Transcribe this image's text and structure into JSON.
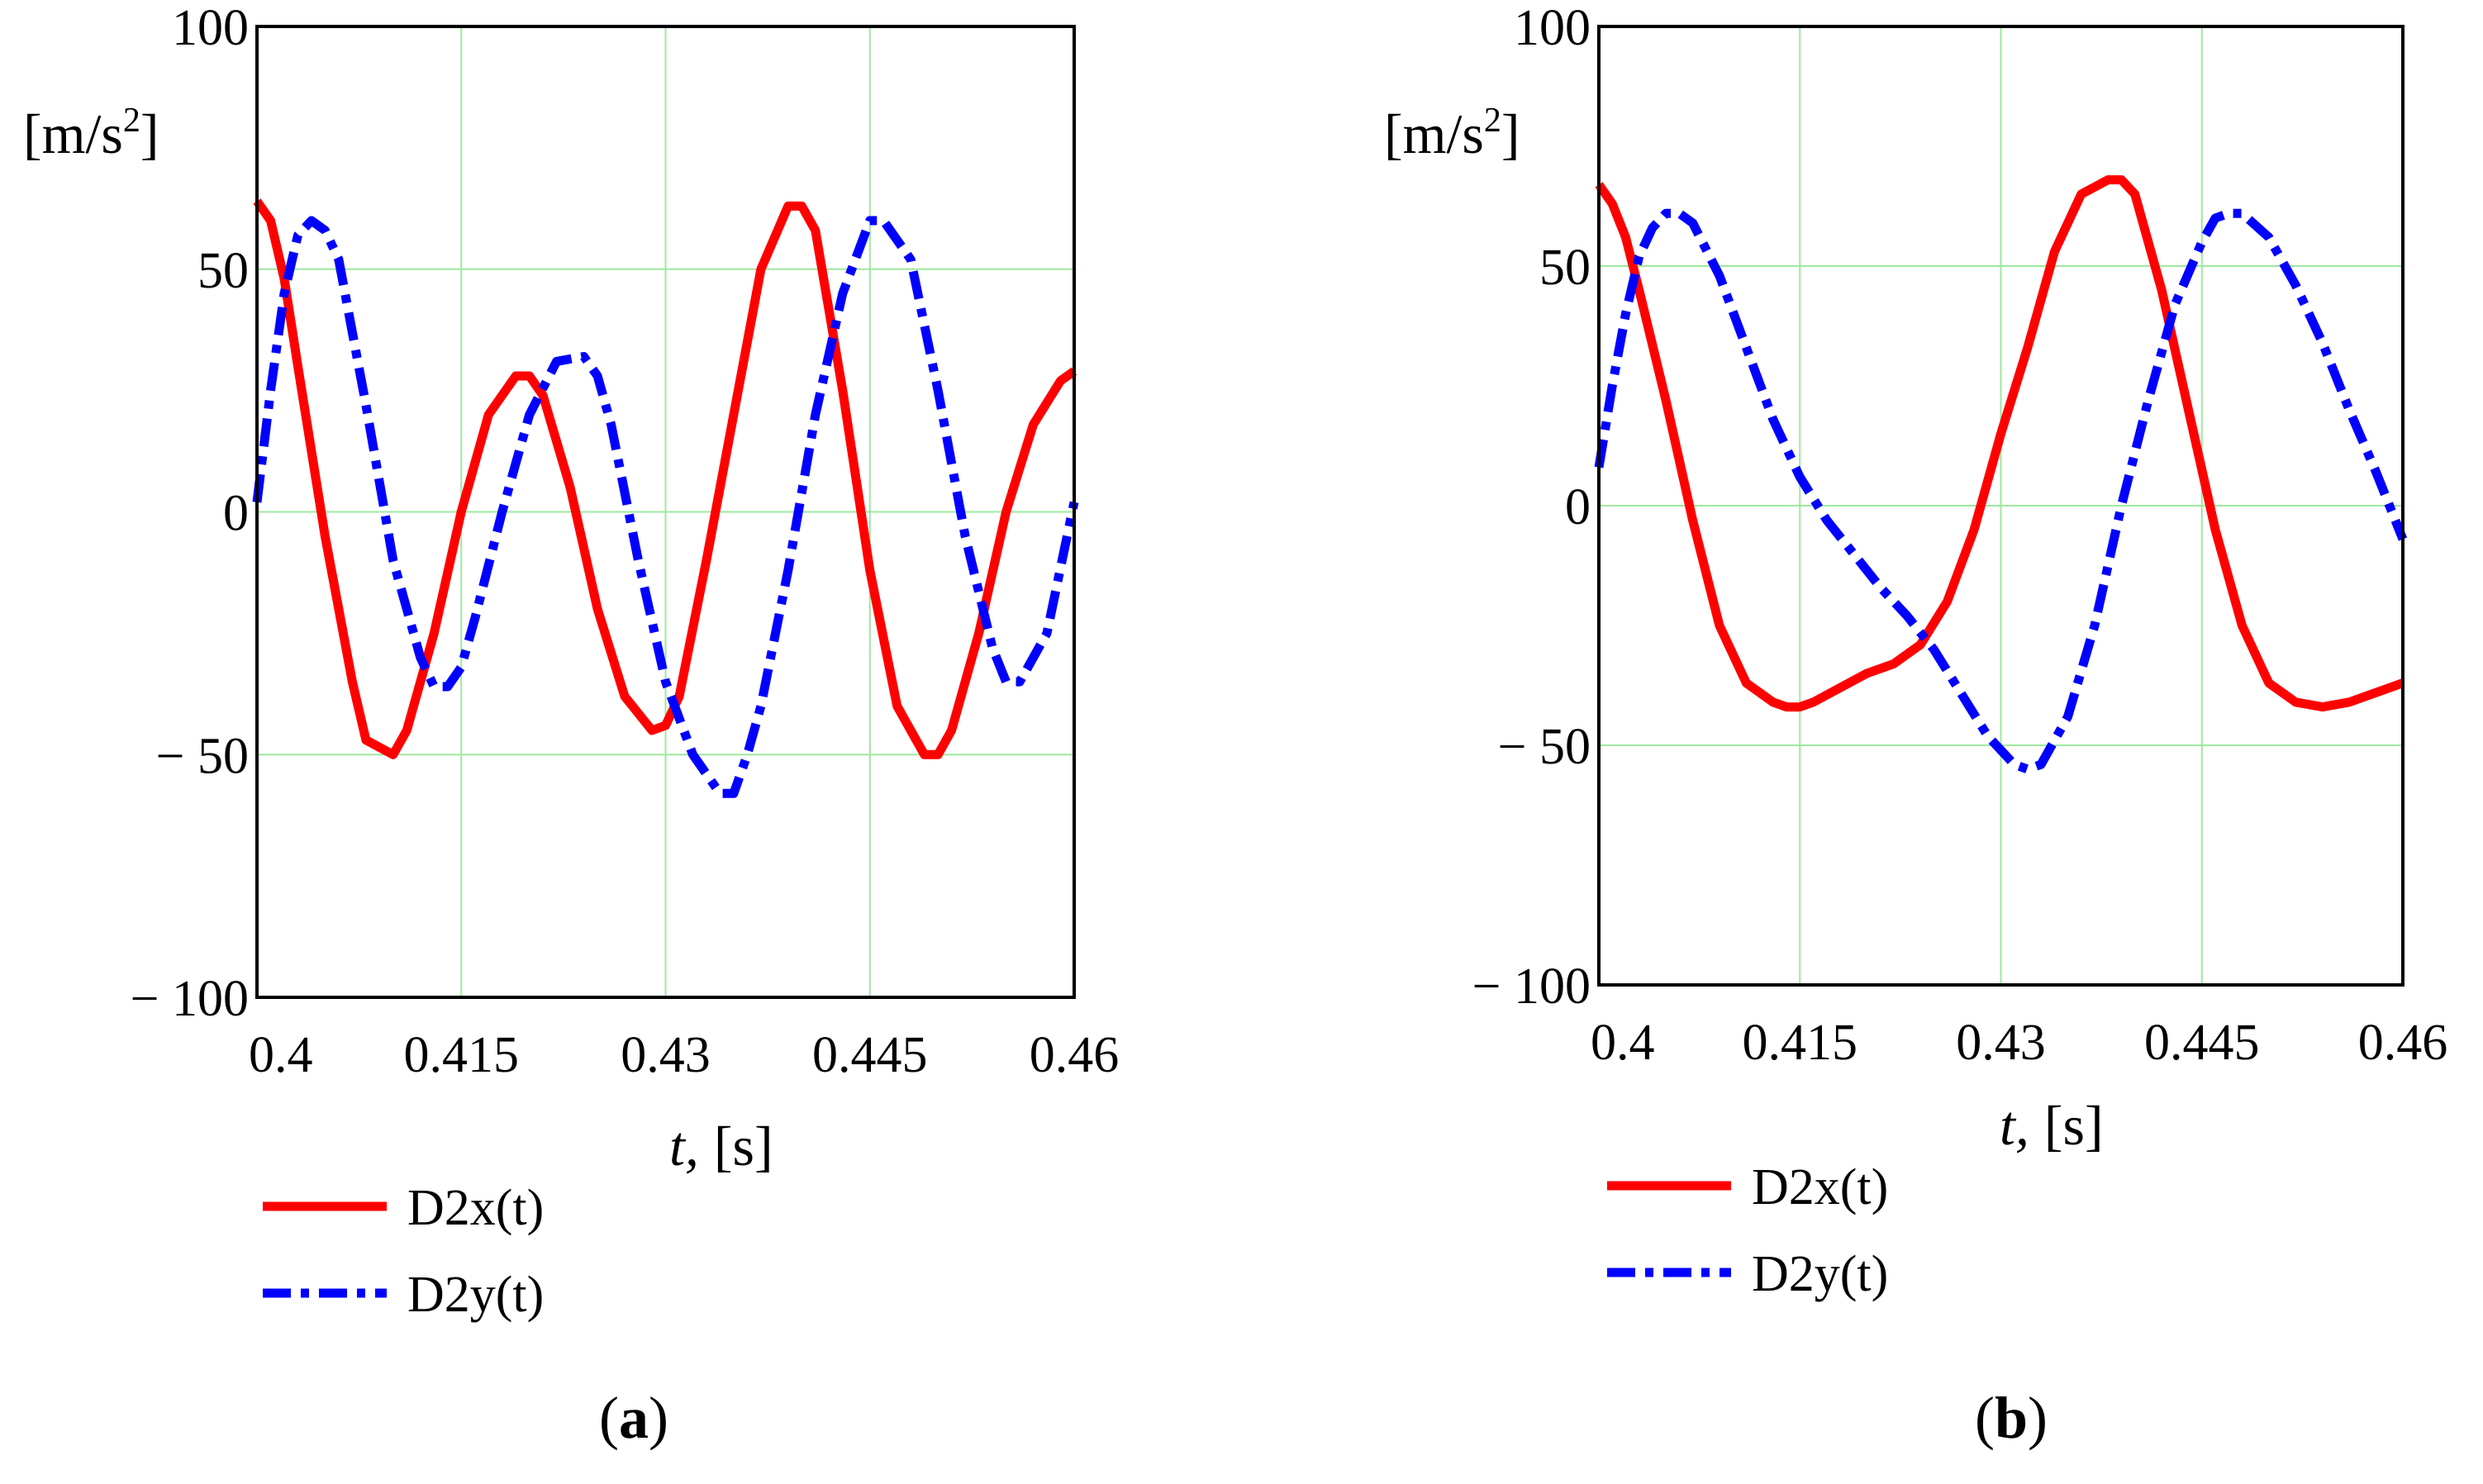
{
  "chart_data": [
    {
      "type": "line",
      "panel_label": "a",
      "xlabel_italic": "t,",
      "xlabel_unit": "[s]",
      "ylabel_main": "[m/s",
      "ylabel_sup": "2",
      "ylabel_close": "]",
      "xlim": [
        0.4,
        0.46
      ],
      "ylim": [
        -100,
        100
      ],
      "x_ticks": [
        0.4,
        0.415,
        0.43,
        0.445,
        0.46
      ],
      "x_tick_labels": [
        "0.4",
        "0.415",
        "0.43",
        "0.445",
        "0.46"
      ],
      "y_ticks": [
        100,
        50,
        0,
        -50,
        -100
      ],
      "y_tick_labels": [
        "100",
        "50",
        "0",
        "− 50",
        "− 100"
      ],
      "grid": true,
      "legend_position": "below",
      "series": [
        {
          "name": "D2x(t)",
          "color": "#ff0000",
          "dash": "solid",
          "x": [
            0.4,
            0.401,
            0.402,
            0.403,
            0.405,
            0.407,
            0.408,
            0.41,
            0.411,
            0.413,
            0.415,
            0.417,
            0.419,
            0.42,
            0.421,
            0.423,
            0.425,
            0.427,
            0.429,
            0.43,
            0.431,
            0.433,
            0.435,
            0.437,
            0.439,
            0.44,
            0.441,
            0.443,
            0.445,
            0.447,
            0.449,
            0.45,
            0.451,
            0.453,
            0.455,
            0.457,
            0.459,
            0.46
          ],
          "y": [
            64,
            60,
            48,
            30,
            -5,
            -35,
            -47,
            -50,
            -45,
            -25,
            0,
            20,
            28,
            28,
            24,
            5,
            -20,
            -38,
            -45,
            -44,
            -38,
            -10,
            20,
            50,
            63,
            63,
            58,
            25,
            -12,
            -40,
            -50,
            -50,
            -45,
            -25,
            0,
            18,
            27,
            29
          ]
        },
        {
          "name": "D2y(t)",
          "color": "#0000ff",
          "dash": "dashdot",
          "x": [
            0.4,
            0.401,
            0.402,
            0.403,
            0.404,
            0.405,
            0.406,
            0.408,
            0.41,
            0.412,
            0.413,
            0.414,
            0.415,
            0.416,
            0.418,
            0.42,
            0.422,
            0.424,
            0.425,
            0.426,
            0.428,
            0.43,
            0.432,
            0.434,
            0.435,
            0.436,
            0.437,
            0.439,
            0.441,
            0.443,
            0.445,
            0.446,
            0.448,
            0.45,
            0.452,
            0.454,
            0.455,
            0.456,
            0.458,
            0.46
          ],
          "y": [
            2,
            25,
            45,
            57,
            60,
            58,
            52,
            22,
            -10,
            -30,
            -36,
            -36,
            -32,
            -22,
            0,
            20,
            31,
            32,
            28,
            18,
            -10,
            -35,
            -50,
            -58,
            -58,
            -50,
            -40,
            -12,
            20,
            45,
            60,
            60,
            52,
            25,
            -5,
            -28,
            -35,
            -35,
            -25,
            2
          ]
        }
      ]
    },
    {
      "type": "line",
      "panel_label": "b",
      "xlabel_italic": "t,",
      "xlabel_unit": "[s]",
      "ylabel_main": "[m/s",
      "ylabel_sup": "2",
      "ylabel_close": "]",
      "xlim": [
        0.4,
        0.46
      ],
      "ylim": [
        -100,
        100
      ],
      "x_ticks": [
        0.4,
        0.415,
        0.43,
        0.445,
        0.46
      ],
      "x_tick_labels": [
        "0.4",
        "0.415",
        "0.43",
        "0.445",
        "0.46"
      ],
      "y_ticks": [
        100,
        50,
        0,
        -50,
        -100
      ],
      "y_tick_labels": [
        "100",
        "50",
        "0",
        "− 50",
        "− 100"
      ],
      "grid": true,
      "legend_position": "below",
      "series": [
        {
          "name": "D2x(t)",
          "color": "#ff0000",
          "dash": "solid",
          "x": [
            0.4,
            0.401,
            0.402,
            0.403,
            0.405,
            0.407,
            0.409,
            0.411,
            0.413,
            0.414,
            0.415,
            0.416,
            0.418,
            0.42,
            0.422,
            0.424,
            0.426,
            0.428,
            0.43,
            0.432,
            0.434,
            0.436,
            0.438,
            0.439,
            0.44,
            0.441,
            0.442,
            0.444,
            0.446,
            0.448,
            0.45,
            0.452,
            0.454,
            0.456,
            0.458,
            0.46
          ],
          "y": [
            67,
            63,
            56,
            45,
            22,
            -3,
            -25,
            -37,
            -41,
            -42,
            -42,
            -41,
            -38,
            -35,
            -33,
            -29,
            -20,
            -5,
            15,
            33,
            53,
            65,
            68,
            68,
            65,
            55,
            45,
            20,
            -5,
            -25,
            -37,
            -41,
            -42,
            -41,
            -39,
            -37
          ]
        },
        {
          "name": "D2y(t)",
          "color": "#0000ff",
          "dash": "dashdot",
          "x": [
            0.4,
            0.401,
            0.402,
            0.403,
            0.404,
            0.405,
            0.406,
            0.407,
            0.409,
            0.411,
            0.413,
            0.415,
            0.417,
            0.419,
            0.421,
            0.423,
            0.425,
            0.427,
            0.429,
            0.431,
            0.432,
            0.433,
            0.435,
            0.437,
            0.439,
            0.441,
            0.443,
            0.445,
            0.446,
            0.447,
            0.448,
            0.45,
            0.452,
            0.454,
            0.456,
            0.458,
            0.46
          ],
          "y": [
            8,
            25,
            40,
            52,
            58,
            61,
            61,
            59,
            48,
            33,
            18,
            6,
            -3,
            -10,
            -17,
            -23,
            -30,
            -39,
            -48,
            -54,
            -55,
            -54,
            -44,
            -25,
            0,
            22,
            42,
            55,
            60,
            61,
            61,
            56,
            46,
            34,
            20,
            7,
            -7
          ]
        }
      ]
    }
  ]
}
